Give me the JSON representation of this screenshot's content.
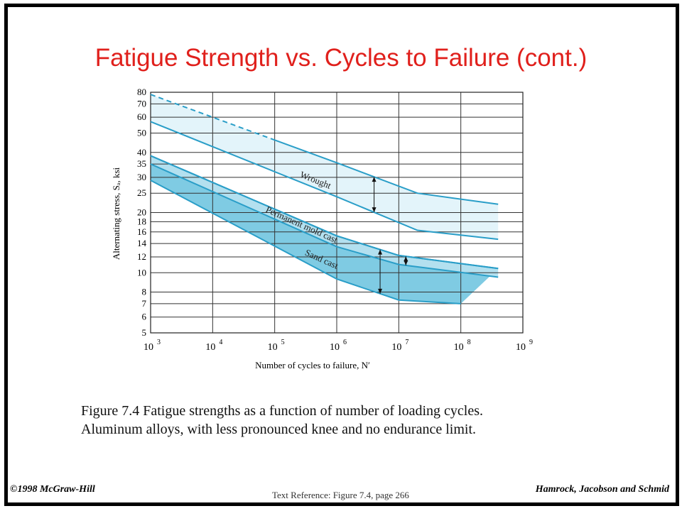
{
  "page": {
    "title": "Fatigue Strength vs. Cycles to Failure (cont.)",
    "caption_line1": "Figure 7.4 Fatigue strengths as a function of number of loading cycles.",
    "caption_line2": "Aluminum alloys,  with less pronounced knee and no endurance limit.",
    "footer_left": "©1998 McGraw-Hill",
    "footer_right": "Hamrock, Jacobson and Schmid",
    "footer_center": "Text Reference:  Figure 7.4,  page 266"
  },
  "colors": {
    "title": "#e0201c",
    "curve": "#2a9ec8",
    "band_light": "#e3f4fa",
    "band_mid": "#b3e0ef",
    "band_dark": "#7fcbe3"
  },
  "chart_data": {
    "type": "area",
    "xscale": "log",
    "yscale": "log",
    "xlim": [
      1000,
      1000000000
    ],
    "ylim": [
      5,
      80
    ],
    "xticks": [
      3,
      4,
      5,
      6,
      7,
      8,
      9
    ],
    "xtick_base": "10",
    "yticks": [
      5,
      6,
      7,
      8,
      10,
      12,
      14,
      16,
      18,
      20,
      25,
      30,
      35,
      40,
      50,
      60,
      70,
      80
    ],
    "xlabel": "Number of cycles to failure, N′",
    "ylabel": "Alternating stress, Sₐ, ksi",
    "grid": true,
    "bands": [
      {
        "name": "Wrought",
        "upper": [
          [
            1000,
            78
          ],
          [
            1000000,
            35.5
          ],
          [
            20000000,
            25
          ],
          [
            400000000,
            22
          ]
        ],
        "lower": [
          [
            1000,
            57
          ],
          [
            1000000,
            24
          ],
          [
            20000000,
            16.3
          ],
          [
            400000000,
            14.7
          ]
        ],
        "dashed_upper_until": 100000
      },
      {
        "name": "Permanent mold cast",
        "upper": [
          [
            1000,
            38.5
          ],
          [
            1000000,
            15.3
          ],
          [
            10000000,
            12.2
          ],
          [
            400000000,
            10.5
          ]
        ],
        "lower": [
          [
            1000,
            35
          ],
          [
            1000000,
            13.5
          ],
          [
            10000000,
            11
          ],
          [
            400000000,
            9.5
          ]
        ]
      },
      {
        "name": "Sand cast",
        "upper": [
          [
            1000,
            38.5
          ],
          [
            1000000,
            15.3
          ],
          [
            10000000,
            12.2
          ],
          [
            400000000,
            10.5
          ]
        ],
        "lower": [
          [
            1000,
            29
          ],
          [
            1000000,
            9.3
          ],
          [
            10000000,
            7.3
          ],
          [
            100000000,
            7
          ]
        ]
      }
    ]
  }
}
